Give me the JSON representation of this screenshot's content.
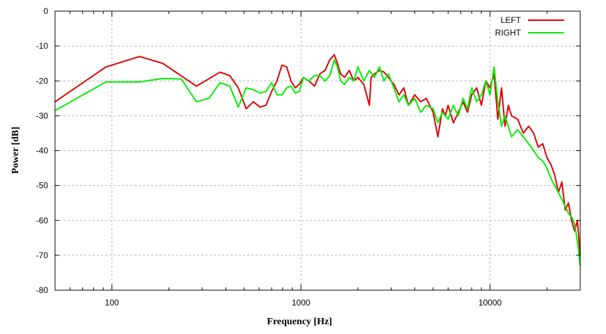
{
  "chart_data": {
    "type": "line",
    "xlabel": "Frequency [Hz]",
    "ylabel": "Power [dB]",
    "x_scale": "log",
    "xlim": [
      50,
      30000
    ],
    "ylim": [
      -80,
      0
    ],
    "x_ticks": [
      {
        "value": 100,
        "label": "100"
      },
      {
        "value": 1000,
        "label": "1000"
      },
      {
        "value": 10000,
        "label": "10000"
      }
    ],
    "y_ticks": [
      {
        "value": 0,
        "label": "0"
      },
      {
        "value": -10,
        "label": "-10"
      },
      {
        "value": -20,
        "label": "-20"
      },
      {
        "value": -30,
        "label": "-30"
      },
      {
        "value": -40,
        "label": "-40"
      },
      {
        "value": -50,
        "label": "-50"
      },
      {
        "value": -60,
        "label": "-60"
      },
      {
        "value": -70,
        "label": "-70"
      },
      {
        "value": -80,
        "label": "-80"
      }
    ],
    "grid": true,
    "legend_position": "top-right",
    "series": [
      {
        "name": "LEFT",
        "color": "#dd0000",
        "x": [
          50,
          93,
          140,
          186,
          280,
          373,
          420,
          466,
          513,
          560,
          607,
          653,
          700,
          746,
          793,
          840,
          886,
          933,
          980,
          1030,
          1100,
          1180,
          1260,
          1340,
          1420,
          1500,
          1560,
          1620,
          1700,
          1800,
          1900,
          2000,
          2150,
          2300,
          2350,
          2450,
          2600,
          2750,
          2900,
          3100,
          3300,
          3500,
          3700,
          4000,
          4300,
          4600,
          5000,
          5300,
          5600,
          5800,
          6000,
          6400,
          6800,
          7200,
          7600,
          8000,
          8500,
          9000,
          9500,
          10000,
          10500,
          11000,
          11500,
          12000,
          12500,
          13000,
          14000,
          15000,
          16000,
          17000,
          18000,
          19000,
          20000,
          21000,
          22000,
          23000,
          24000,
          25000,
          26000,
          27000,
          28000,
          29000,
          30000
        ],
        "y": [
          -26,
          -16,
          -13,
          -15,
          -21.5,
          -17.5,
          -18.5,
          -22,
          -28,
          -26,
          -27.5,
          -27,
          -23,
          -20,
          -15.5,
          -16,
          -20,
          -22,
          -21,
          -19,
          -20,
          -21.5,
          -18,
          -17,
          -14,
          -12.5,
          -15,
          -18,
          -19,
          -17,
          -20,
          -19,
          -21,
          -27,
          -19,
          -18,
          -17,
          -17.5,
          -19,
          -21,
          -24,
          -22,
          -27,
          -24,
          -26,
          -25,
          -29,
          -36,
          -28,
          -30,
          -27,
          -32,
          -29,
          -26,
          -29,
          -24,
          -22,
          -27,
          -20,
          -22,
          -18,
          -31,
          -22,
          -33,
          -27,
          -30,
          -31,
          -35,
          -33,
          -35,
          -39,
          -38,
          -42,
          -44,
          -47,
          -52,
          -49,
          -57,
          -55,
          -60,
          -63,
          -60,
          -70
        ]
      },
      {
        "name": "RIGHT",
        "color": "#00ee00",
        "x": [
          50,
          93,
          140,
          186,
          233,
          280,
          326,
          373,
          420,
          466,
          513,
          560,
          607,
          653,
          700,
          746,
          793,
          840,
          886,
          933,
          980,
          1030,
          1100,
          1180,
          1260,
          1340,
          1420,
          1500,
          1560,
          1620,
          1700,
          1800,
          1900,
          2000,
          2150,
          2300,
          2450,
          2600,
          2750,
          2900,
          3100,
          3300,
          3500,
          3700,
          4000,
          4300,
          4600,
          5000,
          5300,
          5600,
          6000,
          6400,
          6800,
          7200,
          7600,
          8000,
          8500,
          9000,
          9500,
          10000,
          10500,
          11000,
          11500,
          12000,
          13000,
          14000,
          15000,
          16000,
          17000,
          18000,
          19000,
          20000,
          21000,
          22000,
          23000,
          24000,
          25000,
          26000,
          27000,
          28000,
          29000,
          30000
        ],
        "y": [
          -28.5,
          -20.3,
          -20.3,
          -19.3,
          -19.5,
          -26,
          -25,
          -20.5,
          -21.5,
          -27.5,
          -22,
          -22.5,
          -23.5,
          -23,
          -20.5,
          -24,
          -24,
          -22,
          -21.5,
          -23.5,
          -23,
          -19,
          -20,
          -18.5,
          -18.5,
          -20,
          -18.5,
          -14,
          -16,
          -20,
          -21,
          -19,
          -20,
          -16,
          -20,
          -17,
          -19,
          -16,
          -20,
          -18,
          -22,
          -26,
          -24,
          -27,
          -25,
          -29,
          -27,
          -28,
          -32,
          -29,
          -31,
          -27,
          -30,
          -25,
          -28,
          -22,
          -26,
          -24,
          -20,
          -24,
          -16,
          -26,
          -33,
          -30,
          -36,
          -34,
          -36,
          -38,
          -40,
          -42,
          -43,
          -45,
          -48,
          -50,
          -52,
          -54,
          -56,
          -58,
          -59,
          -61,
          -66,
          -73
        ]
      }
    ]
  }
}
